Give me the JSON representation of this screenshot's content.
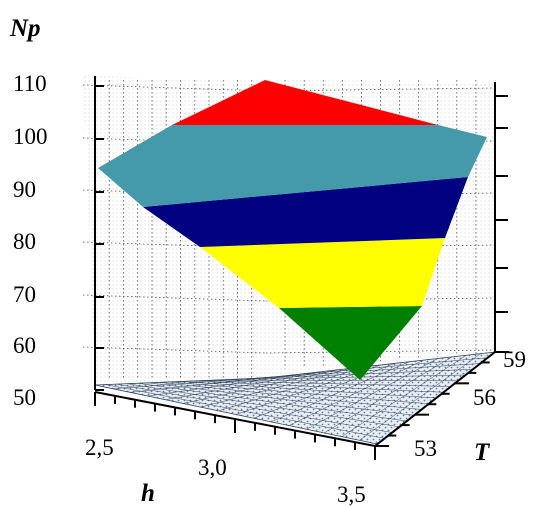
{
  "chart_data": {
    "type": "surface",
    "zlabel": "Np",
    "xlabel": "h",
    "ylabel": "T",
    "zticks": [
      "50",
      "60",
      "70",
      "80",
      "90",
      "100",
      "110"
    ],
    "xticks": [
      "2,5",
      "3,0",
      "3,5"
    ],
    "yticks": [
      "53",
      "56",
      "59"
    ],
    "zlim": [
      50,
      110
    ],
    "xlim": [
      2.5,
      3.5
    ],
    "ylim": [
      53,
      59
    ],
    "colorbands": [
      {
        "from": 50,
        "to": 70,
        "color": "#008000"
      },
      {
        "from": 70,
        "to": 80,
        "color": "#ffff00"
      },
      {
        "from": 80,
        "to": 90,
        "color": "#000080"
      },
      {
        "from": 90,
        "to": 100,
        "color": "#4499aa"
      },
      {
        "from": 100,
        "to": 110,
        "color": "#ff0000"
      }
    ],
    "surface_corners": [
      {
        "h": 2.5,
        "T": 53,
        "Np": 91
      },
      {
        "h": 2.5,
        "T": 59,
        "Np": 110
      },
      {
        "h": 3.5,
        "T": 59,
        "Np": 96
      },
      {
        "h": 3.5,
        "T": 53,
        "Np": 59
      }
    ]
  }
}
